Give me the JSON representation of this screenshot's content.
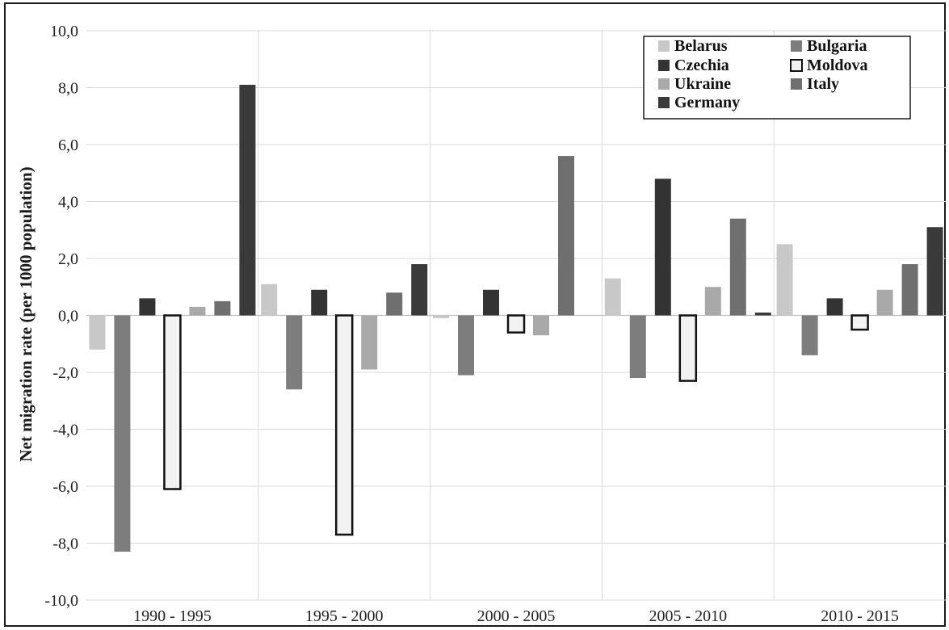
{
  "chart_data": {
    "type": "bar",
    "ylabel": "Net migration rate (per 1000 population)",
    "xlabel": "",
    "ylim": [
      -10,
      10
    ],
    "yticks": [
      -10,
      -8,
      -6,
      -4,
      -2,
      0,
      2,
      4,
      6,
      8,
      10
    ],
    "ytick_labels": [
      "-10,0",
      "-8,0",
      "-6,0",
      "-4,0",
      "-2,0",
      "0,0",
      "2,0",
      "4,0",
      "6,0",
      "8,0",
      "10,0"
    ],
    "categories": [
      "1990 - 1995",
      "1995 - 2000",
      "2000 - 2005",
      "2005 - 2010",
      "2010 - 2015"
    ],
    "grid": true,
    "legend_position": "top-right",
    "series": [
      {
        "name": "Belarus",
        "color": "#c8c8c8",
        "outline": "none",
        "values": [
          -1.2,
          1.1,
          -0.1,
          1.3,
          2.5
        ]
      },
      {
        "name": "Bulgaria",
        "color": "#7d7d7d",
        "outline": "none",
        "values": [
          -8.3,
          -2.6,
          -2.1,
          -2.2,
          -1.4
        ]
      },
      {
        "name": "Czechia",
        "color": "#333333",
        "outline": "none",
        "values": [
          0.6,
          0.9,
          0.9,
          4.8,
          0.6
        ]
      },
      {
        "name": "Moldova",
        "color": "#f2f2f2",
        "outline": "#111111",
        "values": [
          -6.1,
          -7.7,
          -0.6,
          -2.3,
          -0.5
        ]
      },
      {
        "name": "Ukraine",
        "color": "#a9a9a9",
        "outline": "none",
        "values": [
          0.3,
          -1.9,
          -0.7,
          1.0,
          0.9
        ]
      },
      {
        "name": "Italy",
        "color": "#6f6f6f",
        "outline": "none",
        "values": [
          0.5,
          0.8,
          5.6,
          3.4,
          1.8
        ]
      },
      {
        "name": "Germany",
        "color": "#3a3a3a",
        "outline": "none",
        "values": [
          8.1,
          1.8,
          null,
          0.1,
          3.1
        ]
      }
    ]
  }
}
